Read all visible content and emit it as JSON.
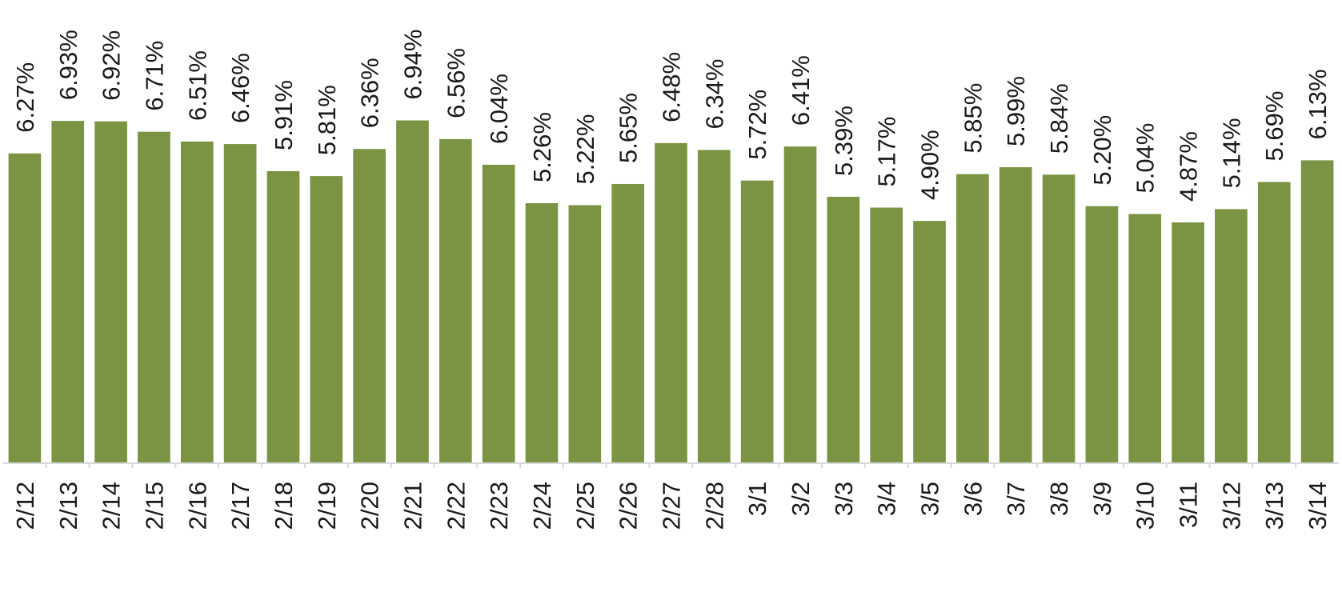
{
  "chart_data": {
    "type": "bar",
    "title": "",
    "xlabel": "",
    "ylabel": "",
    "categories": [
      "2/12",
      "2/13",
      "2/14",
      "2/15",
      "2/16",
      "2/17",
      "2/18",
      "2/19",
      "2/20",
      "2/21",
      "2/22",
      "2/23",
      "2/24",
      "2/25",
      "2/26",
      "2/27",
      "2/28",
      "3/1",
      "3/2",
      "3/3",
      "3/4",
      "3/5",
      "3/6",
      "3/7",
      "3/8",
      "3/9",
      "3/10",
      "3/11",
      "3/12",
      "3/13",
      "3/14"
    ],
    "values": [
      6.27,
      6.93,
      6.92,
      6.71,
      6.51,
      6.46,
      5.91,
      5.81,
      6.36,
      6.94,
      6.56,
      6.04,
      5.26,
      5.22,
      5.65,
      6.48,
      6.34,
      5.72,
      6.41,
      5.39,
      5.17,
      4.9,
      5.85,
      5.99,
      5.84,
      5.2,
      5.04,
      4.87,
      5.14,
      5.69,
      6.13
    ],
    "data_labels": [
      "6.27%",
      "6.93%",
      "6.92%",
      "6.71%",
      "6.51%",
      "6.46%",
      "5.91%",
      "5.81%",
      "6.36%",
      "6.94%",
      "6.56%",
      "6.04%",
      "5.26%",
      "5.22%",
      "5.65%",
      "6.48%",
      "6.34%",
      "5.72%",
      "6.41%",
      "5.39%",
      "5.17%",
      "4.90%",
      "5.85%",
      "5.99%",
      "5.84%",
      "5.20%",
      "5.04%",
      "4.87%",
      "5.14%",
      "5.69%",
      "6.13%"
    ],
    "ylim": [
      0,
      7.0
    ],
    "grid": false,
    "legend": "none",
    "y_axis_visible": false,
    "bar_color": "#7a9443",
    "axis_color": "#d9d9d9",
    "label_color": "#1a1a1a"
  }
}
